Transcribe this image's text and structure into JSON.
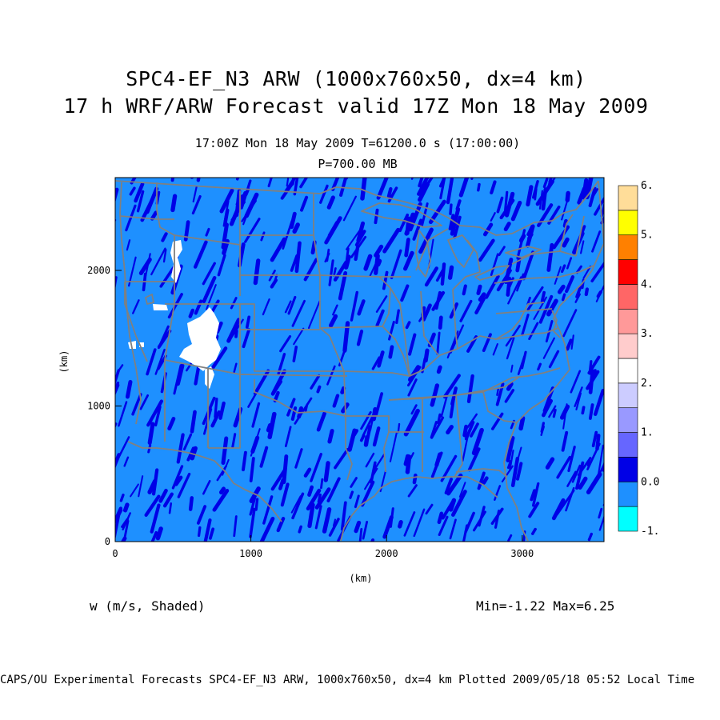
{
  "title": {
    "line1": "SPC4-EF_N3 ARW (1000x760x50, dx=4 km)",
    "line2": "17 h WRF/ARW Forecast valid 17Z Mon 18 May 2009"
  },
  "subtitle": {
    "time": "17:00Z Mon 18 May 2009    T=61200.0 s (17:00:00)",
    "level": "P=700.00 MB"
  },
  "field_label": "w (m/s, Shaded)",
  "min_max": "Min=-1.22 Max=6.25",
  "footer": "CAPS/OU Experimental Forecasts  SPC4-EF_N3 ARW, 1000x760x50, dx=4 km  Plotted 2009/05/18 05:52 Local Time",
  "axes": {
    "xlabel": "(km)",
    "ylabel": "(km)",
    "x_ticks": [
      "0",
      "1000",
      "2000",
      "3000"
    ],
    "y_ticks": [
      "0",
      "1000",
      "2000"
    ]
  },
  "colorbar": {
    "colors": [
      "#00ffff",
      "#1e90ff",
      "#0000e6",
      "#6666ff",
      "#9999ff",
      "#ccccff",
      "#ffffff",
      "#ffcccc",
      "#ff9999",
      "#ff6666",
      "#ff0000",
      "#ff8000",
      "#ffff00",
      "#ffdd99"
    ],
    "labels": [
      "-1.",
      "0.0",
      "1.",
      "2.",
      "3.",
      "4.",
      "5.",
      "6."
    ]
  },
  "map_colors": {
    "background": "#1e90ff",
    "streaks": "#0000e6",
    "boundaries": "#808080",
    "updraft": "#ffffff"
  }
}
